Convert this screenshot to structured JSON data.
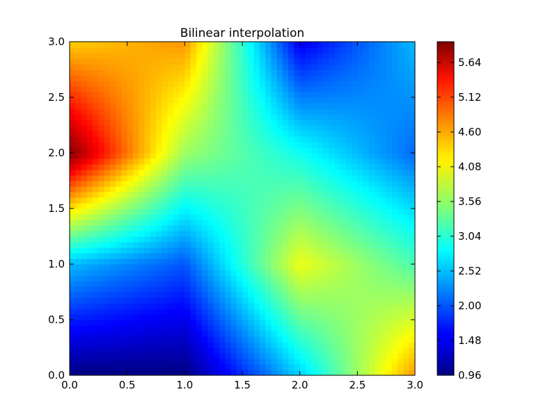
{
  "chart_data": {
    "type": "heatmap",
    "title": "Bilinear interpolation",
    "xlabel": "",
    "ylabel": "",
    "xlim": [
      0.0,
      3.0
    ],
    "ylim": [
      0.0,
      3.0
    ],
    "x": [
      0.0,
      1.0,
      2.0,
      3.0
    ],
    "y": [
      0.0,
      1.0,
      2.0,
      3.0
    ],
    "z": [
      [
        0.96,
        0.96,
        2.6,
        4.6
      ],
      [
        2.5,
        2.0,
        4.0,
        3.2
      ],
      [
        5.95,
        3.6,
        2.9,
        2.1
      ],
      [
        4.3,
        4.6,
        1.5,
        2.5
      ]
    ],
    "x_ticks": [
      "0.0",
      "0.5",
      "1.0",
      "1.5",
      "2.0",
      "2.5",
      "3.0"
    ],
    "y_ticks": [
      "0.0",
      "0.5",
      "1.0",
      "1.5",
      "2.0",
      "2.5",
      "3.0"
    ],
    "colormap": "jet",
    "colorbar": {
      "min": 0.96,
      "max": 5.95,
      "ticks": [
        "0.96",
        "1.48",
        "2.00",
        "2.52",
        "3.04",
        "3.56",
        "4.08",
        "4.60",
        "5.12",
        "5.64"
      ]
    },
    "grid": false
  }
}
